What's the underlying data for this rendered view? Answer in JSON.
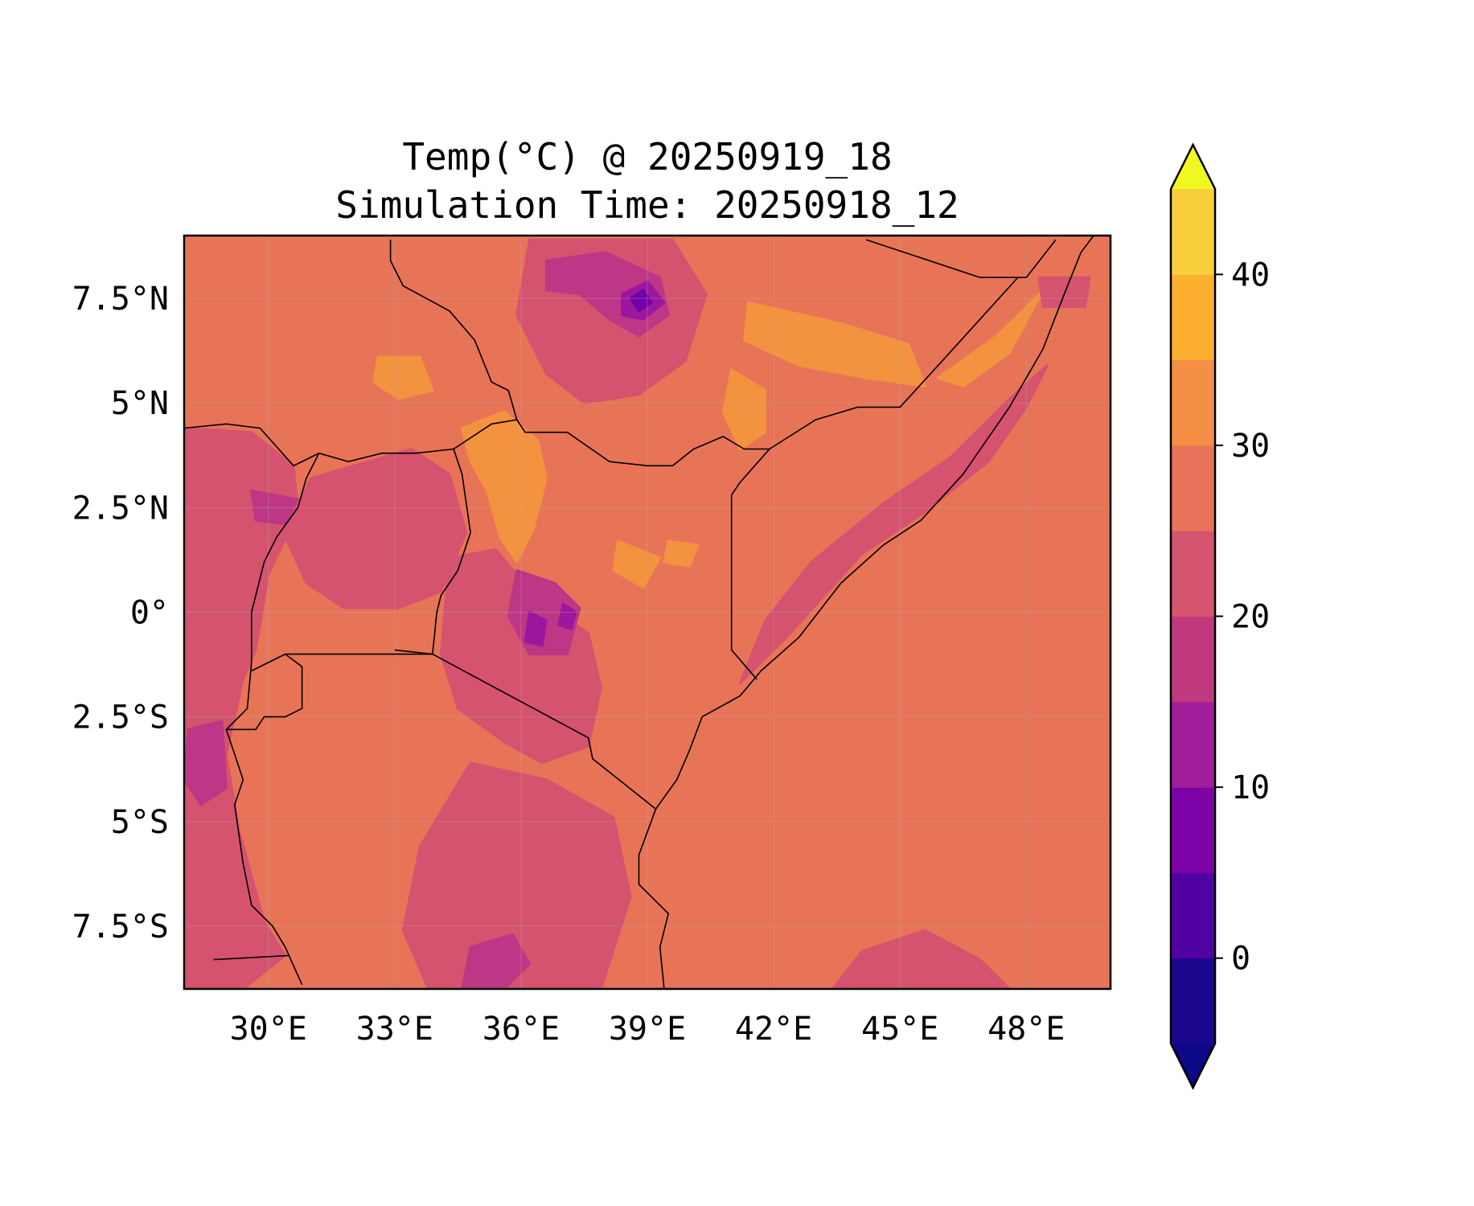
{
  "title": {
    "line1": "Temp(°C) @ 20250919_18",
    "line2": "Simulation Time: 20250918_12"
  },
  "map": {
    "lon_range": [
      28.0,
      50.0
    ],
    "lat_range": [
      -9.0,
      9.0
    ],
    "lon_ticks": [
      30,
      33,
      36,
      39,
      42,
      45,
      48
    ],
    "lon_tick_labels": [
      "30°E",
      "33°E",
      "36°E",
      "39°E",
      "42°E",
      "45°E",
      "48°E"
    ],
    "lat_ticks": [
      7.5,
      5,
      2.5,
      0,
      -2.5,
      -5,
      -7.5
    ],
    "lat_tick_labels": [
      "7.5°N",
      "5°N",
      "2.5°N",
      "0°",
      "2.5°S",
      "5°S",
      "7.5°S"
    ],
    "background_class_color": "#e87458",
    "field_regions": [
      {
        "level": "30-35",
        "color": "#f3923f",
        "points": [
          [
            34.6,
            4.4
          ],
          [
            35.6,
            4.8
          ],
          [
            36.4,
            4.1
          ],
          [
            36.6,
            3.2
          ],
          [
            36.3,
            2.0
          ],
          [
            35.9,
            1.2
          ],
          [
            35.5,
            1.8
          ],
          [
            35.2,
            2.9
          ],
          [
            34.8,
            3.6
          ]
        ]
      },
      {
        "level": "30-35",
        "color": "#f3923f",
        "points": [
          [
            32.6,
            6.1
          ],
          [
            33.6,
            6.1
          ],
          [
            33.9,
            5.3
          ],
          [
            33.1,
            5.1
          ],
          [
            32.5,
            5.5
          ]
        ]
      },
      {
        "level": "30-35",
        "color": "#f3923f",
        "points": [
          [
            41.4,
            7.4
          ],
          [
            43.6,
            6.9
          ],
          [
            45.2,
            6.4
          ],
          [
            45.6,
            5.4
          ],
          [
            44.2,
            5.6
          ],
          [
            42.6,
            5.9
          ],
          [
            41.3,
            6.5
          ]
        ]
      },
      {
        "level": "30-35",
        "color": "#f3923f",
        "points": [
          [
            41.0,
            5.8
          ],
          [
            41.8,
            5.3
          ],
          [
            41.8,
            4.3
          ],
          [
            41.2,
            3.9
          ],
          [
            40.8,
            4.8
          ]
        ]
      },
      {
        "level": "30-35",
        "color": "#f3923f",
        "points": [
          [
            45.9,
            5.6
          ],
          [
            47.3,
            6.6
          ],
          [
            48.4,
            7.7
          ],
          [
            47.6,
            6.2
          ],
          [
            46.5,
            5.4
          ]
        ]
      },
      {
        "level": "30-35",
        "color": "#f3923f",
        "points": [
          [
            38.3,
            1.7
          ],
          [
            39.3,
            1.3
          ],
          [
            38.9,
            0.6
          ],
          [
            38.2,
            1.0
          ]
        ]
      },
      {
        "level": "30-35",
        "color": "#f3923f",
        "points": [
          [
            39.5,
            1.7
          ],
          [
            40.2,
            1.6
          ],
          [
            40.0,
            1.1
          ],
          [
            39.4,
            1.2
          ]
        ]
      },
      {
        "level": "20-25",
        "color": "#d5536e",
        "points": [
          [
            28.0,
            4.4
          ],
          [
            29.6,
            4.3
          ],
          [
            30.6,
            3.5
          ],
          [
            30.7,
            2.4
          ],
          [
            30.0,
            0.9
          ],
          [
            29.7,
            -0.9
          ],
          [
            29.4,
            -1.6
          ],
          [
            29.0,
            -3.4
          ],
          [
            29.3,
            -5.2
          ],
          [
            29.9,
            -7.4
          ],
          [
            30.4,
            -8.2
          ],
          [
            29.4,
            -9.0
          ],
          [
            28.0,
            -9.0
          ]
        ]
      },
      {
        "level": "20-25",
        "color": "#d5536e",
        "points": [
          [
            31.0,
            3.2
          ],
          [
            33.4,
            3.9
          ],
          [
            34.3,
            3.3
          ],
          [
            34.7,
            1.9
          ],
          [
            34.1,
            0.5
          ],
          [
            33.1,
            0.1
          ],
          [
            31.8,
            0.1
          ],
          [
            30.9,
            0.7
          ],
          [
            30.4,
            1.8
          ]
        ]
      },
      {
        "level": "20-25",
        "color": "#d5536e",
        "points": [
          [
            34.3,
            1.3
          ],
          [
            35.4,
            1.5
          ],
          [
            36.4,
            0.3
          ],
          [
            37.6,
            -0.5
          ],
          [
            37.9,
            -1.8
          ],
          [
            37.6,
            -3.2
          ],
          [
            36.5,
            -3.6
          ],
          [
            35.6,
            -3.1
          ],
          [
            34.5,
            -2.3
          ],
          [
            34.1,
            -1.0
          ]
        ]
      },
      {
        "level": "20-25",
        "color": "#d5536e",
        "points": [
          [
            34.8,
            -3.6
          ],
          [
            36.6,
            -4.0
          ],
          [
            38.2,
            -4.9
          ],
          [
            38.6,
            -6.8
          ],
          [
            37.9,
            -9.0
          ],
          [
            33.8,
            -9.0
          ],
          [
            33.2,
            -7.6
          ],
          [
            33.6,
            -5.6
          ]
        ]
      },
      {
        "level": "20-25",
        "color": "#d5536e",
        "points": [
          [
            36.2,
            8.9
          ],
          [
            39.6,
            8.9
          ],
          [
            40.4,
            7.6
          ],
          [
            39.9,
            6.0
          ],
          [
            38.8,
            5.2
          ],
          [
            37.5,
            5.0
          ],
          [
            36.6,
            5.7
          ],
          [
            35.9,
            7.1
          ]
        ]
      },
      {
        "level": "20-25",
        "color": "#d5536e",
        "points": [
          [
            41.2,
            -1.7
          ],
          [
            42.3,
            -0.6
          ],
          [
            44.1,
            1.4
          ],
          [
            45.6,
            2.4
          ],
          [
            47.1,
            3.6
          ],
          [
            48.0,
            4.9
          ],
          [
            48.5,
            5.9
          ],
          [
            47.6,
            5.1
          ],
          [
            46.2,
            3.7
          ],
          [
            44.6,
            2.6
          ],
          [
            42.9,
            1.2
          ],
          [
            41.8,
            -0.2
          ]
        ]
      },
      {
        "level": "20-25",
        "color": "#d5536e",
        "points": [
          [
            44.1,
            -8.1
          ],
          [
            45.6,
            -7.6
          ],
          [
            46.9,
            -8.3
          ],
          [
            47.6,
            -9.0
          ],
          [
            43.4,
            -9.0
          ]
        ]
      },
      {
        "level": "20-25",
        "color": "#d5536e",
        "points": [
          [
            48.3,
            8.0
          ],
          [
            49.5,
            8.0
          ],
          [
            49.4,
            7.3
          ],
          [
            48.4,
            7.3
          ]
        ]
      },
      {
        "level": "15-20",
        "color": "#bd3786",
        "points": [
          [
            36.6,
            8.4
          ],
          [
            38.0,
            8.6
          ],
          [
            39.3,
            8.0
          ],
          [
            39.5,
            7.1
          ],
          [
            38.8,
            6.6
          ],
          [
            38.1,
            7.0
          ],
          [
            37.4,
            7.6
          ],
          [
            36.6,
            7.7
          ]
        ]
      },
      {
        "level": "15-20",
        "color": "#bd3786",
        "points": [
          [
            35.9,
            1.0
          ],
          [
            36.8,
            0.7
          ],
          [
            37.4,
            0.1
          ],
          [
            37.1,
            -1.0
          ],
          [
            36.2,
            -1.0
          ],
          [
            35.7,
            -0.1
          ]
        ]
      },
      {
        "level": "15-20",
        "color": "#bd3786",
        "points": [
          [
            28.1,
            -2.8
          ],
          [
            28.9,
            -2.6
          ],
          [
            29.0,
            -4.2
          ],
          [
            28.4,
            -4.6
          ],
          [
            28.0,
            -4.0
          ]
        ]
      },
      {
        "level": "15-20",
        "color": "#bd3786",
        "points": [
          [
            29.6,
            2.9
          ],
          [
            30.7,
            2.7
          ],
          [
            30.4,
            2.1
          ],
          [
            29.7,
            2.2
          ]
        ]
      },
      {
        "level": "15-20",
        "color": "#bd3786",
        "points": [
          [
            34.8,
            -8.0
          ],
          [
            35.8,
            -7.7
          ],
          [
            36.2,
            -8.4
          ],
          [
            35.6,
            -9.0
          ],
          [
            34.6,
            -9.0
          ]
        ]
      },
      {
        "level": "10-15",
        "color": "#9c179e",
        "points": [
          [
            38.4,
            7.6
          ],
          [
            39.0,
            7.9
          ],
          [
            39.4,
            7.4
          ],
          [
            38.9,
            7.0
          ],
          [
            38.4,
            7.1
          ]
        ]
      },
      {
        "level": "10-15",
        "color": "#9c179e",
        "points": [
          [
            36.2,
            0.0
          ],
          [
            36.6,
            -0.2
          ],
          [
            36.5,
            -0.8
          ],
          [
            36.1,
            -0.7
          ]
        ]
      },
      {
        "level": "10-15",
        "color": "#9c179e",
        "points": [
          [
            37.0,
            0.2
          ],
          [
            37.3,
            0.0
          ],
          [
            37.2,
            -0.4
          ],
          [
            36.9,
            -0.3
          ]
        ]
      },
      {
        "level": "5-10",
        "color": "#7201a8",
        "points": [
          [
            38.6,
            7.5
          ],
          [
            38.9,
            7.7
          ],
          [
            39.1,
            7.4
          ],
          [
            38.8,
            7.2
          ]
        ]
      }
    ],
    "boundaries": [
      [
        [
          41.9,
          3.9
        ],
        [
          41.2,
          3.1
        ],
        [
          41.0,
          2.8
        ],
        [
          41.0,
          -0.9
        ],
        [
          41.6,
          -1.6
        ]
      ],
      [
        [
          33.9,
          -1.0
        ],
        [
          37.6,
          -3.0
        ],
        [
          37.7,
          -3.5
        ],
        [
          39.2,
          -4.7
        ]
      ],
      [
        [
          33.0,
          -0.9
        ],
        [
          33.9,
          -1.0
        ],
        [
          34.0,
          0.0
        ],
        [
          34.1,
          0.4
        ],
        [
          34.5,
          1.0
        ],
        [
          34.8,
          1.9
        ],
        [
          34.6,
          3.3
        ],
        [
          34.4,
          3.9
        ],
        [
          33.5,
          3.8
        ],
        [
          32.7,
          3.8
        ],
        [
          31.9,
          3.6
        ],
        [
          31.2,
          3.8
        ]
      ],
      [
        [
          34.4,
          3.9
        ],
        [
          35.3,
          4.5
        ],
        [
          35.9,
          4.6
        ],
        [
          36.1,
          4.3
        ],
        [
          37.1,
          4.3
        ],
        [
          38.1,
          3.6
        ],
        [
          39.0,
          3.5
        ],
        [
          39.6,
          3.5
        ],
        [
          40.1,
          3.9
        ],
        [
          40.8,
          4.2
        ],
        [
          41.3,
          3.9
        ],
        [
          41.9,
          3.9
        ]
      ],
      [
        [
          31.2,
          3.8
        ],
        [
          30.6,
          3.5
        ],
        [
          29.8,
          4.4
        ],
        [
          29.0,
          4.5
        ],
        [
          28.0,
          4.4
        ]
      ],
      [
        [
          35.9,
          4.6
        ],
        [
          35.7,
          5.3
        ],
        [
          35.3,
          5.5
        ],
        [
          34.9,
          6.5
        ],
        [
          34.3,
          7.2
        ],
        [
          33.2,
          7.8
        ],
        [
          33.0,
          8.2
        ],
        [
          32.9,
          8.4
        ],
        [
          32.9,
          8.9
        ]
      ],
      [
        [
          31.2,
          3.8
        ],
        [
          30.9,
          3.2
        ],
        [
          30.7,
          2.5
        ],
        [
          30.2,
          1.8
        ],
        [
          29.9,
          1.2
        ],
        [
          29.6,
          0.0
        ],
        [
          29.6,
          -1.2
        ],
        [
          29.5,
          -2.3
        ],
        [
          29.0,
          -2.8
        ],
        [
          29.4,
          -4.0
        ],
        [
          29.2,
          -4.6
        ],
        [
          29.4,
          -6.0
        ],
        [
          29.6,
          -7.0
        ],
        [
          30.1,
          -7.5
        ],
        [
          30.4,
          -8.0
        ],
        [
          30.8,
          -8.9
        ]
      ],
      [
        [
          30.4,
          -1.0
        ],
        [
          30.8,
          -1.3
        ],
        [
          30.8,
          -2.3
        ],
        [
          30.4,
          -2.5
        ],
        [
          29.9,
          -2.5
        ],
        [
          29.7,
          -2.8
        ],
        [
          29.0,
          -2.8
        ]
      ],
      [
        [
          30.4,
          -1.0
        ],
        [
          29.6,
          -1.4
        ]
      ],
      [
        [
          30.4,
          -1.0
        ],
        [
          33.9,
          -1.0
        ]
      ],
      [
        [
          28.7,
          -8.3
        ],
        [
          30.5,
          -8.2
        ]
      ],
      [
        [
          41.9,
          3.9
        ],
        [
          43.0,
          4.6
        ],
        [
          44.0,
          4.9
        ],
        [
          45.0,
          4.9
        ],
        [
          46.0,
          6.0
        ],
        [
          47.8,
          8.0
        ]
      ],
      [
        [
          44.2,
          8.9
        ],
        [
          46.9,
          8.0
        ],
        [
          48.0,
          8.0
        ]
      ],
      [
        [
          48.0,
          8.0
        ],
        [
          48.7,
          8.9
        ]
      ],
      [
        [
          39.2,
          -4.7
        ],
        [
          39.7,
          -4.0
        ],
        [
          40.0,
          -3.3
        ],
        [
          40.3,
          -2.5
        ],
        [
          41.2,
          -2.0
        ],
        [
          41.7,
          -1.4
        ],
        [
          42.6,
          -0.6
        ],
        [
          43.6,
          0.7
        ],
        [
          44.6,
          1.6
        ],
        [
          45.5,
          2.2
        ],
        [
          46.5,
          3.3
        ],
        [
          47.6,
          4.9
        ],
        [
          48.4,
          6.3
        ],
        [
          48.9,
          7.6
        ],
        [
          49.3,
          8.6
        ],
        [
          49.6,
          9.0
        ]
      ],
      [
        [
          39.2,
          -4.7
        ],
        [
          38.8,
          -5.8
        ],
        [
          38.8,
          -6.5
        ],
        [
          39.5,
          -7.2
        ],
        [
          39.3,
          -8.0
        ],
        [
          39.4,
          -9.0
        ]
      ]
    ]
  },
  "colorbar": {
    "levels": [
      -5,
      0,
      5,
      10,
      15,
      20,
      25,
      30,
      35,
      40,
      45
    ],
    "colors": [
      "#1b068e",
      "#5102a3",
      "#7d03a8",
      "#a21d9a",
      "#c0397f",
      "#d5546e",
      "#e8735a",
      "#f48f45",
      "#fdb02f",
      "#f7d03c"
    ],
    "extend_low_color": "#0d0887",
    "extend_high_color": "#eff821",
    "tick_values": [
      0,
      10,
      20,
      30,
      40
    ],
    "tick_labels": [
      "0",
      "10",
      "20",
      "30",
      "40"
    ]
  }
}
